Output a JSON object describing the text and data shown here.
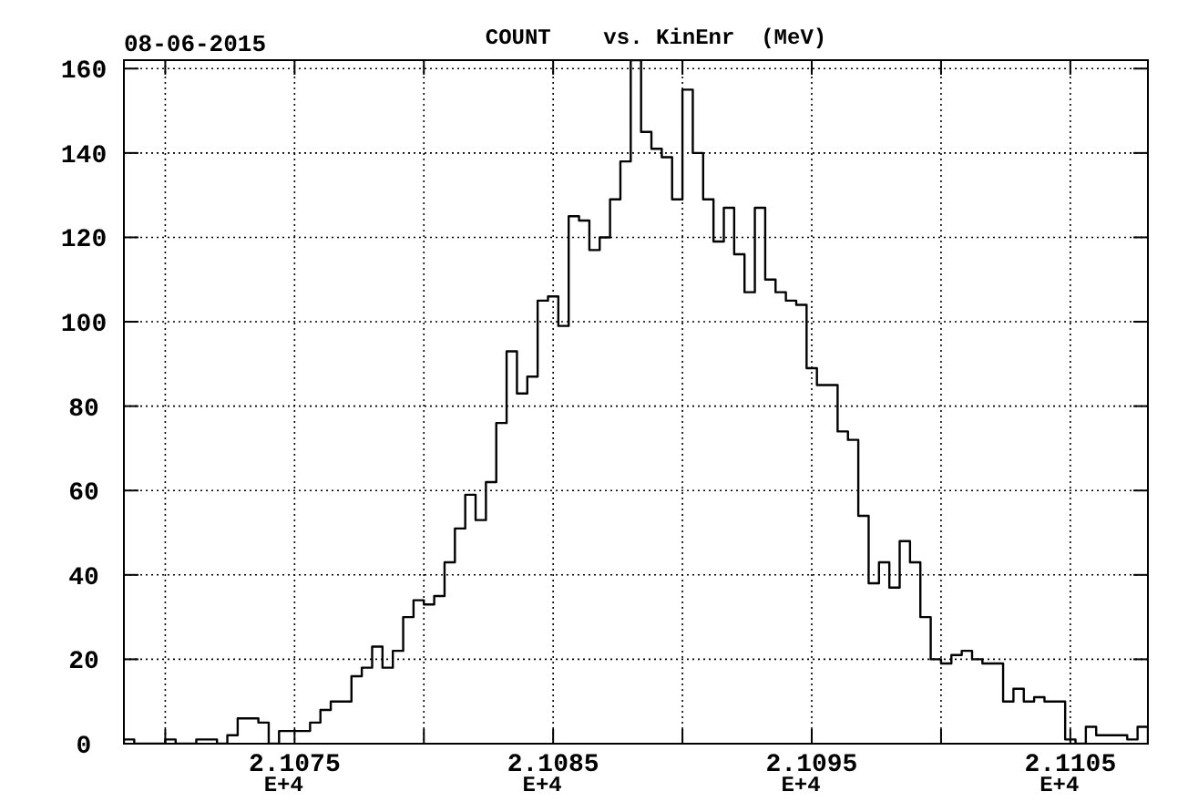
{
  "chart_data": {
    "type": "histogram",
    "title": "COUNT    vs. KinEnr  (MeV)",
    "annotations": [
      "08-06-2015"
    ],
    "bins": [
      2.10684,
      2.10688,
      2.10692,
      2.10696,
      2.107,
      2.10704,
      2.10708,
      2.10712,
      2.10716,
      2.1072,
      2.10724,
      2.10728,
      2.10732,
      2.10736,
      2.1074,
      2.10744,
      2.10748,
      2.10752,
      2.10756,
      2.1076,
      2.10764,
      2.10768,
      2.10772,
      2.10776,
      2.1078,
      2.10784,
      2.10788,
      2.10792,
      2.10796,
      2.108,
      2.10804,
      2.10808,
      2.10812,
      2.10816,
      2.1082,
      2.10824,
      2.10828,
      2.10832,
      2.10836,
      2.1084,
      2.10844,
      2.10848,
      2.10852,
      2.10856,
      2.1086,
      2.10864,
      2.10868,
      2.10872,
      2.10876,
      2.1088,
      2.10884,
      2.10888,
      2.10892,
      2.10896,
      2.109,
      2.10904,
      2.10908,
      2.10912,
      2.10916,
      2.1092,
      2.10924,
      2.10928,
      2.10932,
      2.10936,
      2.1094,
      2.10944,
      2.10948,
      2.10952,
      2.10956,
      2.1096,
      2.10964,
      2.10968,
      2.10972,
      2.10976,
      2.1098,
      2.10984,
      2.10988,
      2.10992,
      2.10996,
      2.11,
      2.11004,
      2.11008,
      2.11012,
      2.11016,
      2.1102,
      2.11024,
      2.11028,
      2.11032,
      2.11036,
      2.1104,
      2.11044,
      2.11048,
      2.11052,
      2.11056,
      2.1106,
      2.11064,
      2.11068,
      2.11072,
      2.11076,
      2.1108
    ],
    "values": [
      1,
      0,
      0,
      0,
      1,
      0,
      0,
      1,
      1,
      0,
      2,
      6,
      6,
      5,
      0,
      3,
      3,
      3,
      5,
      8,
      10,
      10,
      16,
      18,
      23,
      18,
      22,
      30,
      34,
      33,
      35,
      43,
      51,
      59,
      53,
      62,
      76,
      93,
      83,
      87,
      105,
      106,
      99,
      125,
      124,
      117,
      120,
      129,
      138,
      162,
      145,
      141,
      139,
      129,
      155,
      140,
      129,
      119,
      127,
      116,
      107,
      127,
      110,
      107,
      105,
      104,
      89,
      85,
      85,
      74,
      72,
      54,
      38,
      43,
      37,
      48,
      43,
      30,
      20,
      19,
      21,
      22,
      20,
      19,
      19,
      10,
      13,
      10,
      11,
      10,
      10,
      1,
      0,
      4,
      2,
      2,
      2,
      1,
      4
    ],
    "color": "#000000",
    "xlim": [
      2.10684,
      2.1108
    ],
    "xlabel": "E+4",
    "xticks": [
      {
        "value": 2.107,
        "label": null
      },
      2.1075,
      {
        "value": 2.108,
        "label": null
      },
      2.1085,
      {
        "value": 2.109,
        "label": null
      },
      2.1095,
      {
        "value": 2.11,
        "label": null
      },
      2.1105
    ],
    "ylim": [
      0,
      162
    ],
    "yticks": [
      0,
      20,
      40,
      60,
      80,
      100,
      120,
      140,
      160
    ],
    "grid": true
  }
}
